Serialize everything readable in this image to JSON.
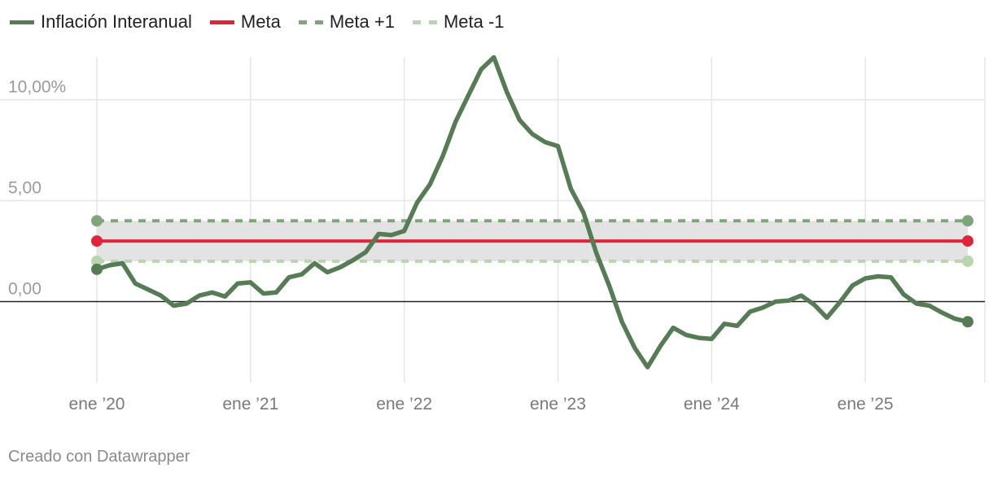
{
  "colors": {
    "inflation": "#557c55",
    "meta": "#e0243a",
    "meta_plus": "#7ea67a",
    "meta_minus": "#b8d5ad",
    "band": "#e3e3e3",
    "grid": "#e6e6e6",
    "zero": "#222222"
  },
  "credit": "Creado con Datawrapper",
  "chart_data": {
    "type": "line",
    "title": "",
    "xlabel": "",
    "ylabel": "",
    "legend_position": "top-left",
    "grid": true,
    "x_start": "2020-01",
    "x_end": "2025-09",
    "x_ticks": [
      {
        "date": "2020-01",
        "label": "ene ’20"
      },
      {
        "date": "2021-01",
        "label": "ene ’21"
      },
      {
        "date": "2022-01",
        "label": "ene ’22"
      },
      {
        "date": "2023-01",
        "label": "ene ’23"
      },
      {
        "date": "2024-01",
        "label": "ene ’24"
      },
      {
        "date": "2025-01",
        "label": "ene ’25"
      }
    ],
    "ylim": [
      -4.2,
      12.4
    ],
    "y_ticks": [
      {
        "value": 10,
        "label": "10,00%"
      },
      {
        "value": 5,
        "label": "5,00"
      },
      {
        "value": 0,
        "label": "0,00"
      }
    ],
    "legend": [
      {
        "key": "inflation",
        "label": "Inflación Interanual",
        "style": "solid"
      },
      {
        "key": "meta",
        "label": "Meta",
        "style": "solid"
      },
      {
        "key": "meta_plus",
        "label": "Meta +1",
        "style": "dashed"
      },
      {
        "key": "meta_minus",
        "label": "Meta -1",
        "style": "dashed"
      }
    ],
    "series": [
      {
        "name": "Inflación Interanual",
        "key": "inflation",
        "x": [
          "2020-01",
          "2020-02",
          "2020-03",
          "2020-04",
          "2020-05",
          "2020-06",
          "2020-07",
          "2020-08",
          "2020-09",
          "2020-10",
          "2020-11",
          "2020-12",
          "2021-01",
          "2021-02",
          "2021-03",
          "2021-04",
          "2021-05",
          "2021-06",
          "2021-07",
          "2021-08",
          "2021-09",
          "2021-10",
          "2021-11",
          "2021-12",
          "2022-01",
          "2022-02",
          "2022-03",
          "2022-04",
          "2022-05",
          "2022-06",
          "2022-07",
          "2022-08",
          "2022-09",
          "2022-10",
          "2022-11",
          "2022-12",
          "2023-01",
          "2023-02",
          "2023-03",
          "2023-04",
          "2023-05",
          "2023-06",
          "2023-07",
          "2023-08",
          "2023-09",
          "2023-10",
          "2023-11",
          "2023-12",
          "2024-01",
          "2024-02",
          "2024-03",
          "2024-04",
          "2024-05",
          "2024-06",
          "2024-07",
          "2024-08",
          "2024-09",
          "2024-10",
          "2024-11",
          "2024-12",
          "2025-01",
          "2025-02",
          "2025-03",
          "2025-04",
          "2025-05",
          "2025-06",
          "2025-07",
          "2025-08",
          "2025-09"
        ],
        "values": [
          1.6,
          1.8,
          1.9,
          0.9,
          0.6,
          0.3,
          -0.2,
          -0.1,
          0.3,
          0.45,
          0.25,
          0.9,
          0.95,
          0.4,
          0.45,
          1.2,
          1.35,
          1.9,
          1.45,
          1.7,
          2.05,
          2.45,
          3.35,
          3.3,
          3.5,
          4.9,
          5.8,
          7.2,
          8.9,
          10.2,
          11.5,
          12.1,
          10.4,
          9.0,
          8.3,
          7.9,
          7.7,
          5.6,
          4.4,
          2.4,
          0.8,
          -1.0,
          -2.3,
          -3.25,
          -2.2,
          -1.3,
          -1.65,
          -1.8,
          -1.85,
          -1.1,
          -1.2,
          -0.5,
          -0.3,
          0.0,
          0.05,
          0.3,
          -0.15,
          -0.8,
          -0.05,
          0.8,
          1.15,
          1.25,
          1.2,
          0.35,
          -0.1,
          -0.2,
          -0.55,
          -0.85,
          -1.0
        ]
      },
      {
        "name": "Meta",
        "key": "meta",
        "x": [
          "2020-01",
          "2025-09"
        ],
        "values": [
          3,
          3
        ]
      },
      {
        "name": "Meta +1",
        "key": "meta_plus",
        "x": [
          "2020-01",
          "2025-09"
        ],
        "values": [
          4,
          4
        ]
      },
      {
        "name": "Meta -1",
        "key": "meta_minus",
        "x": [
          "2020-01",
          "2025-09"
        ],
        "values": [
          2,
          2
        ]
      }
    ]
  }
}
